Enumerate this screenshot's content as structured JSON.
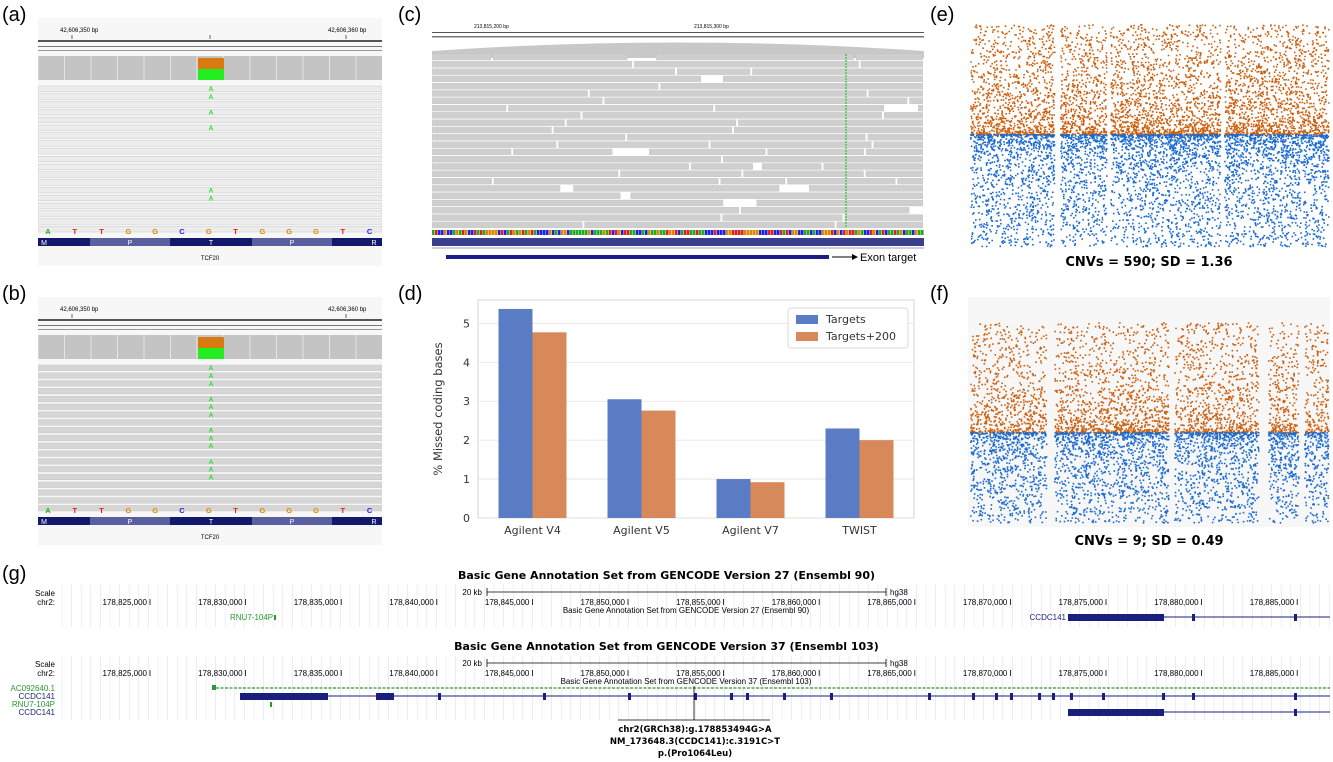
{
  "panel_labels": {
    "a": "(a)",
    "b": "(b)",
    "c": "(c)",
    "d": "(d)",
    "e": "(e)",
    "f": "(f)",
    "g": "(g)"
  },
  "igv_a": {
    "coord_left": "42,606,350 bp",
    "coord_right": "42,606,360 bp",
    "bases": [
      "A",
      "T",
      "T",
      "G",
      "G",
      "C",
      "G",
      "T",
      "G",
      "G",
      "G",
      "T",
      "C"
    ],
    "aa": [
      "M",
      "P",
      "T",
      "P",
      "R"
    ],
    "gene": "TCF20",
    "alt_base": "A",
    "colors": {
      "alt": "#33dd33",
      "ref_top": "#d87a10",
      "read": "#dcdcdc",
      "track": "#141a6b"
    }
  },
  "igv_b": {
    "coord_left": "42,606,350 bp",
    "coord_right": "42,606,360 bp",
    "bases": [
      "A",
      "T",
      "T",
      "G",
      "G",
      "C",
      "G",
      "T",
      "G",
      "G",
      "G",
      "T",
      "C"
    ],
    "aa": [
      "M",
      "P",
      "T",
      "P",
      "R"
    ],
    "gene": "TCF20",
    "alt_base": "A"
  },
  "igv_c": {
    "coord_1": "213,815,200 bp",
    "coord_2": "213,815,300 bp",
    "exon_label": "Exon target"
  },
  "chart_data": {
    "type": "bar",
    "categories": [
      "Agilent V4",
      "Agilent V5",
      "Agilent V7",
      "TWIST"
    ],
    "series": [
      {
        "name": "Targets",
        "values": [
          5.37,
          3.05,
          1.0,
          2.3
        ],
        "color": "#5a7cc5"
      },
      {
        "name": "Targets+200",
        "values": [
          4.77,
          2.76,
          0.92,
          2.0
        ],
        "color": "#d8895a"
      }
    ],
    "ylabel": "% Missed coding bases",
    "xlabel": "",
    "ylim": [
      0,
      5.6
    ],
    "yticks": [
      0,
      1,
      2,
      3,
      4,
      5
    ],
    "grid": true,
    "legend": "top-right"
  },
  "cnv_e": {
    "caption": "CNVs = 590; SD = 1.36",
    "colors": {
      "up": "#cc5f0e",
      "down": "#1a6ad0"
    }
  },
  "cnv_f": {
    "caption": "CNVs = 9; SD = 0.49"
  },
  "ucsc1": {
    "title": "Basic Gene Annotation Set from GENCODE Version 27 (Ensembl 90)",
    "scale_label": "Scale",
    "chr_label": "chr2:",
    "scale_bar": "20 kb",
    "assembly": "hg38",
    "ticks": [
      "178,825,000",
      "178,830,000",
      "178,835,000",
      "178,840,000",
      "178,845,000",
      "178,850,000",
      "178,855,000",
      "178,860,000",
      "178,865,000",
      "178,870,000",
      "178,875,000",
      "178,880,000",
      "178,885,000"
    ],
    "track_name": "Basic Gene Annotation Set from GENCODE Version 27 (Ensembl 90)",
    "gene_left": "RNU7-104P",
    "gene_right": "CCDC141"
  },
  "ucsc2": {
    "title": "Basic Gene Annotation Set from GENCODE Version 37 (Ensembl 103)",
    "scale_label": "Scale",
    "chr_label": "chr2:",
    "scale_bar": "20 kb",
    "assembly": "hg38",
    "ticks": [
      "178,825,000",
      "178,830,000",
      "178,835,000",
      "178,840,000",
      "178,845,000",
      "178,850,000",
      "178,855,000",
      "178,860,000",
      "178,865,000",
      "178,870,000",
      "178,875,000",
      "178,880,000",
      "178,885,000"
    ],
    "track_name": "Basic Gene Annotation Set from GENCODE Version 37 (Ensembl 103)",
    "row_labels": [
      "AC092640.1",
      "CCDC141",
      "RNU7-104P",
      "CCDC141"
    ],
    "variant": [
      "chr2(GRCh38):g.178853494G>A",
      "NM_173648.3(CCDC141):c.3191C>T",
      "p.(Pro1064Leu)"
    ]
  }
}
